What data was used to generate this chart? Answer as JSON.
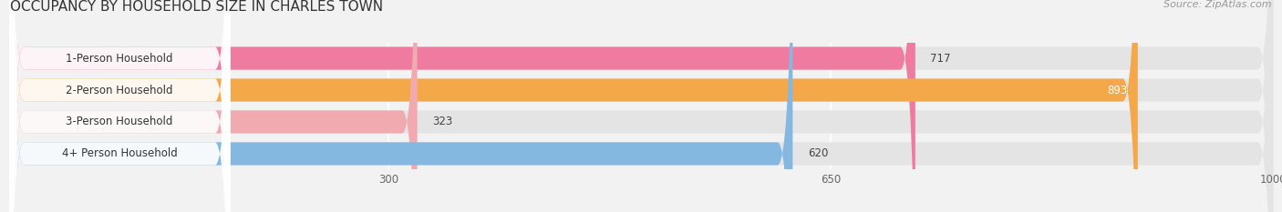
{
  "title": "OCCUPANCY BY HOUSEHOLD SIZE IN CHARLES TOWN",
  "source_text": "Source: ZipAtlas.com",
  "categories": [
    "1-Person Household",
    "2-Person Household",
    "3-Person Household",
    "4+ Person Household"
  ],
  "values": [
    717,
    893,
    323,
    620
  ],
  "bar_colors": [
    "#f07ba0",
    "#f5a84a",
    "#f0aab0",
    "#85b8e0"
  ],
  "xlim_max": 1000,
  "xticks": [
    300,
    650,
    1000
  ],
  "background_color": "#f2f2f2",
  "bar_bg_color": "#e4e4e4",
  "bar_row_bg": "#f8f8f8",
  "title_fontsize": 11,
  "source_fontsize": 8,
  "label_fontsize": 8.5,
  "value_fontsize": 8.5,
  "tick_fontsize": 8.5
}
